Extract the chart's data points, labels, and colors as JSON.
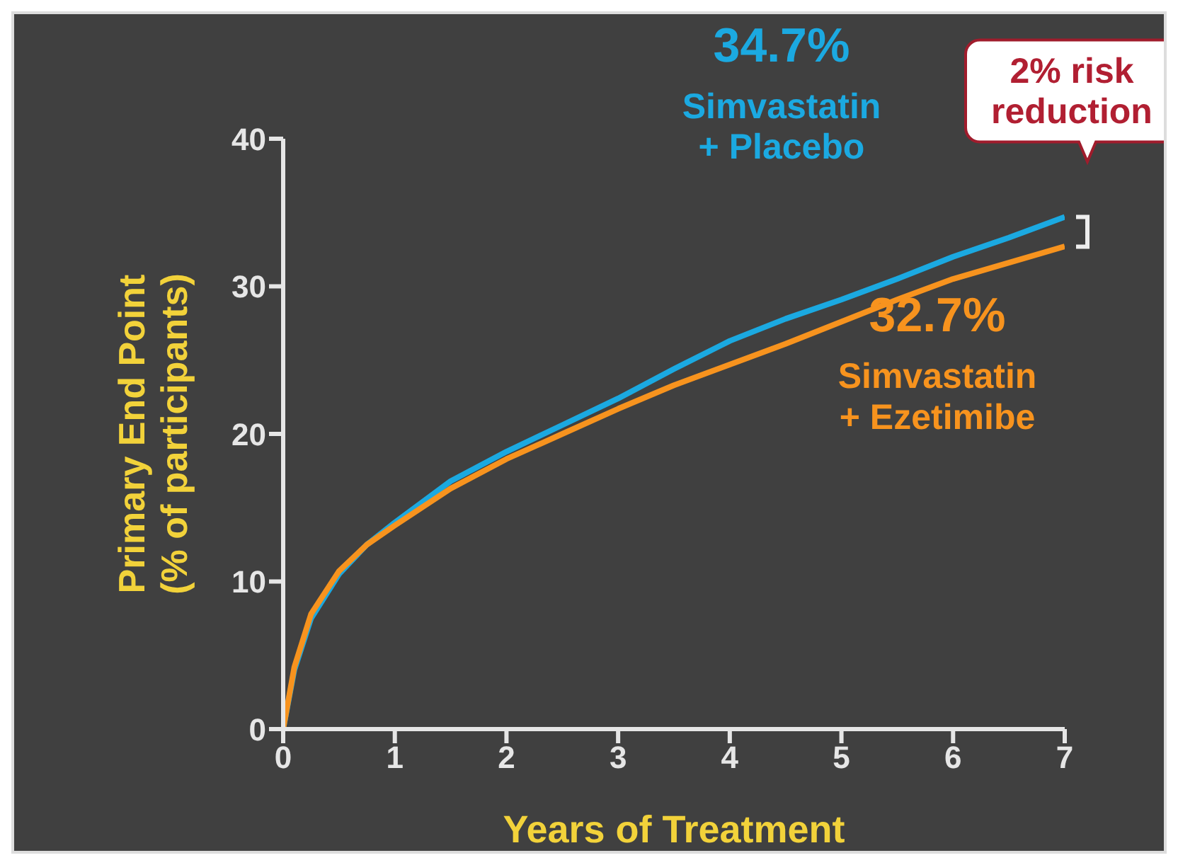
{
  "chart_data": {
    "type": "line",
    "xlabel": "Years of Treatment",
    "ylabel": "Primary End Point\n(% of participants)",
    "xlim": [
      0,
      7
    ],
    "xticks": [
      0,
      1,
      2,
      3,
      4,
      5,
      6,
      7
    ],
    "ylim": [
      0,
      40
    ],
    "yticks": [
      0,
      10,
      20,
      30,
      40
    ],
    "grid": false,
    "legend": false,
    "marker": "none",
    "line_style": "solid",
    "x": [
      0,
      0.1,
      0.25,
      0.5,
      0.75,
      1,
      1.5,
      2,
      2.5,
      3,
      3.5,
      4,
      4.5,
      5,
      5.5,
      6,
      6.5,
      7
    ],
    "series": [
      {
        "name": "Simvastatin\n+ Placebo",
        "color": "#1ba9e1",
        "values": [
          0,
          4,
          7.5,
          10.5,
          12.5,
          14,
          16.8,
          18.8,
          20.6,
          22.4,
          24.4,
          26.3,
          27.8,
          29.1,
          30.5,
          32,
          33.3,
          34.7
        ]
      },
      {
        "name": "Simvastatin\n+ Ezetimibe",
        "color": "#f7931e",
        "values": [
          0,
          4.2,
          7.8,
          10.7,
          12.5,
          13.8,
          16.3,
          18.3,
          20,
          21.7,
          23.3,
          24.7,
          26.1,
          27.6,
          29.1,
          30.5,
          31.6,
          32.7
        ]
      }
    ],
    "annotations": [
      "34.7%",
      "32.7%",
      {
        "text": "2% risk\nreduction",
        "x": 7,
        "y": 34.7
      }
    ]
  }
}
